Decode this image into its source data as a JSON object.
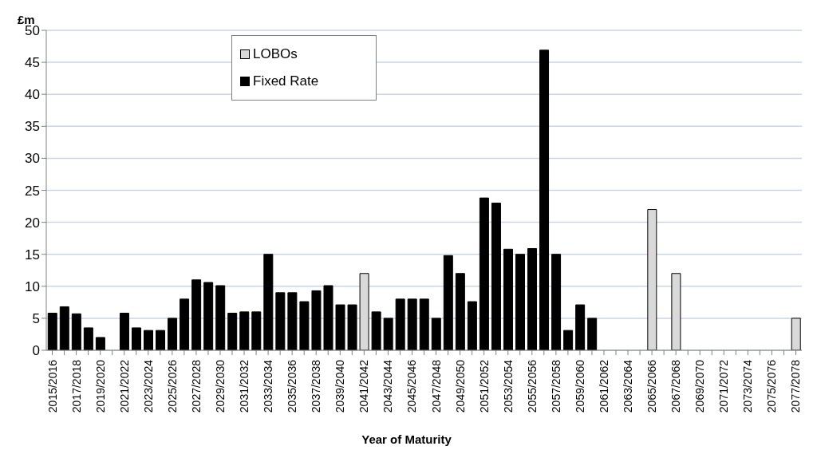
{
  "chart_data": {
    "type": "bar",
    "ylabel": "£m",
    "xlabel": "Year of Maturity",
    "stacked": true,
    "grid": "y",
    "legend": "top",
    "ylim": [
      0,
      50
    ],
    "yticks": [
      0,
      5,
      10,
      15,
      20,
      25,
      30,
      35,
      40,
      45,
      50
    ],
    "categories": [
      "2015/2016",
      null,
      "2017/2018",
      null,
      "2019/2020",
      null,
      "2021/2022",
      null,
      "2023/2024",
      null,
      "2025/2026",
      null,
      "2027/2028",
      null,
      "2029/2030",
      null,
      "2031/2032",
      null,
      "2033/2034",
      null,
      "2035/2036",
      null,
      "2037/2038",
      null,
      "2039/2040",
      null,
      "2041/2042",
      null,
      "2043/2044",
      null,
      "2045/2046",
      null,
      "2047/2048",
      null,
      "2049/2050",
      null,
      "2051/2052",
      null,
      "2053/2054",
      null,
      "2055/2056",
      null,
      "2057/2058",
      null,
      "2059/2060",
      null,
      "2061/2062",
      null,
      "2063/2064",
      null,
      "2065/2066",
      null,
      "2067/2068",
      null,
      "2069/2070",
      null,
      "2071/2072",
      null,
      "2073/2074",
      null,
      "2075/2076",
      null,
      "2077/2078"
    ],
    "series": [
      {
        "name": "LOBOs",
        "color": "#d9d9d9",
        "values": [
          null,
          null,
          null,
          null,
          null,
          null,
          null,
          null,
          null,
          null,
          null,
          null,
          null,
          null,
          null,
          null,
          null,
          null,
          null,
          null,
          null,
          null,
          null,
          null,
          null,
          null,
          12,
          null,
          null,
          null,
          null,
          null,
          null,
          null,
          null,
          null,
          null,
          null,
          null,
          null,
          null,
          null,
          null,
          null,
          null,
          null,
          null,
          null,
          null,
          null,
          22,
          null,
          12,
          null,
          null,
          null,
          null,
          null,
          null,
          null,
          null,
          null,
          5
        ]
      },
      {
        "name": "Fixed Rate",
        "color": "#000000",
        "values": [
          5.8,
          6.8,
          5.7,
          3.5,
          2,
          0,
          5.8,
          3.5,
          3.1,
          3.1,
          5,
          8,
          11,
          10.6,
          10.1,
          5.8,
          6,
          6,
          15,
          9,
          9,
          7.6,
          9.3,
          10.1,
          7.1,
          7.1,
          null,
          6,
          5,
          8,
          8,
          8,
          5,
          14.8,
          12,
          7.6,
          23.8,
          23,
          15.8,
          15,
          15.9,
          46.9,
          15,
          3.1,
          7.1,
          5,
          0,
          0,
          0,
          0,
          null,
          0,
          null,
          0,
          0,
          0,
          0,
          0,
          0,
          0,
          0,
          0,
          null
        ]
      }
    ]
  }
}
